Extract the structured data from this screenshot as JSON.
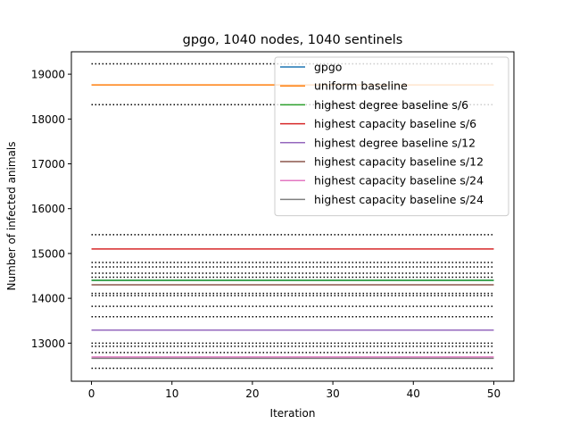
{
  "chart_data": {
    "type": "line",
    "title": "gpgo, 1040 nodes, 1040 sentinels",
    "xlabel": "Iteration",
    "ylabel": "Number of infected animals",
    "xlim": [
      -2.5,
      52.5
    ],
    "ylim": [
      12150,
      19500
    ],
    "xticks": [
      0,
      10,
      20,
      30,
      40,
      50
    ],
    "yticks": [
      13000,
      14000,
      15000,
      16000,
      17000,
      18000,
      19000
    ],
    "grid": false,
    "legend_position": "top-right",
    "x": [
      0,
      50
    ],
    "series": [
      {
        "name": "gpgo",
        "color": "#1f77b4",
        "values": [
          14400,
          14400
        ]
      },
      {
        "name": "uniform baseline",
        "color": "#ff7f0e",
        "values": [
          18760,
          18760
        ]
      },
      {
        "name": "highest degree baseline s/6",
        "color": "#2ca02c",
        "values": [
          14400,
          14400
        ]
      },
      {
        "name": "highest capacity baseline s/6",
        "color": "#d62728",
        "values": [
          15100,
          15100
        ]
      },
      {
        "name": "highest degree baseline s/12",
        "color": "#9467bd",
        "values": [
          13290,
          13290
        ]
      },
      {
        "name": "highest capacity baseline s/12",
        "color": "#8c564b",
        "values": [
          14300,
          14300
        ]
      },
      {
        "name": "highest capacity baseline s/24",
        "color": "#e377c2",
        "values": [
          12690,
          12690
        ]
      },
      {
        "name": "highest capacity baseline s/24",
        "color": "#7f7f7f",
        "values": [
          12660,
          12660
        ]
      }
    ],
    "confidence_bounds": {
      "color": "#000000",
      "style": "dotted",
      "values": [
        19230,
        18320,
        15420,
        14800,
        14700,
        14560,
        14470,
        14110,
        14060,
        13820,
        13590,
        13000,
        12930,
        12790,
        12440
      ]
    }
  }
}
